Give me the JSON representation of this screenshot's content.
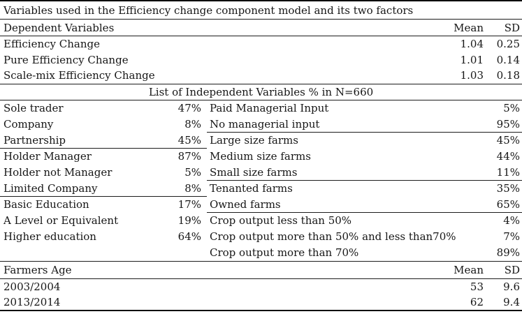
{
  "table": {
    "title": "Variables used in the Efficiency change component model and its two factors"
  },
  "dependent": {
    "header": {
      "label": "Dependent Variables",
      "mean": "Mean",
      "sd": "SD"
    },
    "rows": [
      {
        "label": "Efficiency Change",
        "mean": "1.04",
        "sd": "0.25"
      },
      {
        "label": "Pure Efficiency Change",
        "mean": "1.01",
        "sd": "0.14"
      },
      {
        "label": "Scale-mix Efficiency Change",
        "mean": "1.03",
        "sd": "0.18"
      }
    ]
  },
  "independent": {
    "section_title": "List of Independent Variables % in N=660",
    "left": [
      {
        "label": "Sole trader",
        "value": "47%"
      },
      {
        "label": "Company",
        "value": "8%"
      },
      {
        "label": "Partnership",
        "value": "45%"
      },
      {
        "label": "Holder Manager",
        "value": "87%"
      },
      {
        "label": "Holder not Manager",
        "value": "5%"
      },
      {
        "label": "Limited Company",
        "value": "8%"
      },
      {
        "label": "Basic Education",
        "value": "17%"
      },
      {
        "label": "A Level or Equivalent",
        "value": "19%"
      },
      {
        "label": "Higher education",
        "value": "64%"
      },
      {
        "label": "",
        "value": ""
      }
    ],
    "right": [
      {
        "label": "Paid Managerial Input",
        "value": "5%"
      },
      {
        "label": "No managerial input",
        "value": "95%"
      },
      {
        "label": "Large size farms",
        "value": "45%"
      },
      {
        "label": "Medium size farms",
        "value": "44%"
      },
      {
        "label": "Small size farms",
        "value": "11%"
      },
      {
        "label": "Tenanted farms",
        "value": "35%"
      },
      {
        "label": "Owned farms",
        "value": "65%"
      },
      {
        "label": "Crop output less than 50%",
        "value": "4%"
      },
      {
        "label": "Crop output more than 50% and less than70%",
        "value": "7%"
      },
      {
        "label": "Crop output more than 70%",
        "value": "89%"
      }
    ]
  },
  "age": {
    "header": {
      "label": "Farmers Age",
      "mean": "Mean",
      "sd": "SD"
    },
    "rows": [
      {
        "label": "2003/2004",
        "mean": "53",
        "sd": "9.6"
      },
      {
        "label": "2013/2014",
        "mean": "62",
        "sd": "9.4"
      }
    ]
  },
  "colors": {
    "background": "#ffffff",
    "text": "#161616",
    "rule": "#1c1c1c"
  }
}
